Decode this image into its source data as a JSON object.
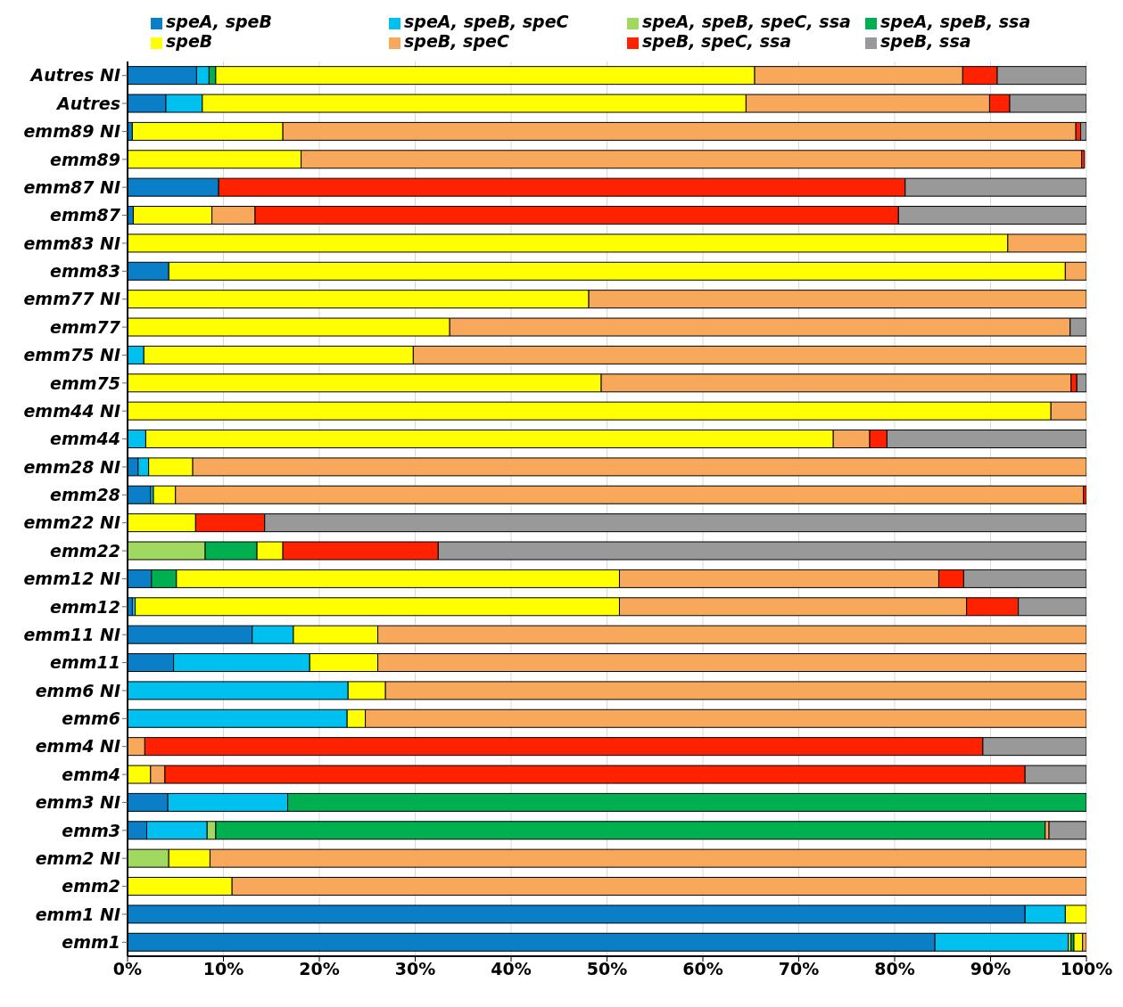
{
  "chart_data": {
    "type": "bar",
    "orientation": "horizontal",
    "stacked": true,
    "legend": "top",
    "grid": "x",
    "categories": [
      "Autres NI",
      "Autres",
      "emm89 NI",
      "emm89",
      "emm87 NI",
      "emm87",
      "emm83 NI",
      "emm83",
      "emm77 NI",
      "emm77",
      "emm75 NI",
      "emm75",
      "emm44 NI",
      "emm44",
      "emm28 NI",
      "emm28",
      "emm22 NI",
      "emm22",
      "emm12 NI",
      "emm12",
      "emm11 NI",
      "emm11",
      "emm6 NI",
      "emm6",
      "emm4 NI",
      "emm4",
      "emm3 NI",
      "emm3",
      "emm2 NI",
      "emm2",
      "emm1 NI",
      "emm1"
    ],
    "xlim": [
      0,
      100
    ],
    "xticks": [
      {
        "value": 0,
        "label": "0%"
      },
      {
        "value": 10,
        "label": "10%"
      },
      {
        "value": 20,
        "label": "20%"
      },
      {
        "value": 30,
        "label": "30%"
      },
      {
        "value": 40,
        "label": "40%"
      },
      {
        "value": 50,
        "label": "50%"
      },
      {
        "value": 60,
        "label": "60%"
      },
      {
        "value": 70,
        "label": "70%"
      },
      {
        "value": 80,
        "label": "80%"
      },
      {
        "value": 90,
        "label": "90%"
      },
      {
        "value": 100,
        "label": "100%"
      }
    ],
    "series": [
      {
        "name": "speA, speB",
        "color": "#0a7fc8",
        "values": [
          7.2,
          4.0,
          0.5,
          null,
          9.5,
          0.6,
          null,
          4.3,
          null,
          null,
          null,
          null,
          null,
          null,
          1.1,
          2.4,
          null,
          null,
          2.5,
          0.5,
          13.0,
          4.8,
          null,
          null,
          null,
          null,
          4.2,
          2.0,
          null,
          null,
          93.6,
          84.2
        ]
      },
      {
        "name": "speA, speB, speC",
        "color": "#00c0f0",
        "values": [
          1.3,
          3.8,
          null,
          null,
          null,
          null,
          null,
          null,
          null,
          null,
          1.7,
          null,
          null,
          1.9,
          1.1,
          0.3,
          null,
          null,
          null,
          0.3,
          4.3,
          14.2,
          23.0,
          22.9,
          null,
          null,
          12.5,
          6.3,
          null,
          null,
          4.2,
          13.9
        ]
      },
      {
        "name": "speA, speB, speC, ssa",
        "color": "#a0d860",
        "values": [
          null,
          null,
          null,
          null,
          null,
          null,
          null,
          null,
          null,
          null,
          null,
          null,
          null,
          null,
          null,
          null,
          null,
          8.1,
          null,
          null,
          null,
          null,
          null,
          null,
          null,
          null,
          null,
          0.9,
          4.3,
          null,
          null,
          0.3
        ]
      },
      {
        "name": "speA, speB, ssa",
        "color": "#00b050",
        "values": [
          0.7,
          null,
          null,
          null,
          null,
          null,
          null,
          null,
          null,
          null,
          null,
          null,
          null,
          null,
          null,
          null,
          null,
          5.4,
          2.6,
          null,
          null,
          null,
          null,
          null,
          null,
          null,
          83.3,
          86.5,
          null,
          null,
          null,
          0.3
        ]
      },
      {
        "name": "speB",
        "color": "#ffff00",
        "values": [
          56.2,
          56.7,
          15.7,
          18.1,
          null,
          8.2,
          91.8,
          93.5,
          48.1,
          33.6,
          28.1,
          49.4,
          96.3,
          71.7,
          4.6,
          2.3,
          7.1,
          2.7,
          46.2,
          50.5,
          8.8,
          7.1,
          3.9,
          1.9,
          null,
          2.4,
          null,
          null,
          4.3,
          10.9,
          2.2,
          0.9
        ]
      },
      {
        "name": "speB, speC",
        "color": "#f8a85a",
        "values": [
          21.7,
          25.4,
          82.7,
          81.4,
          null,
          4.5,
          8.2,
          2.2,
          51.9,
          64.7,
          70.2,
          49.0,
          3.7,
          3.8,
          93.2,
          94.7,
          null,
          null,
          33.3,
          36.2,
          73.9,
          73.9,
          73.1,
          75.2,
          1.8,
          1.5,
          null,
          0.4,
          91.4,
          89.1,
          null,
          0.4
        ]
      },
      {
        "name": "speB, speC, ssa",
        "color": "#ff2200",
        "values": [
          3.6,
          2.1,
          0.5,
          0.3,
          71.6,
          67.1,
          null,
          null,
          null,
          null,
          null,
          0.6,
          null,
          1.8,
          null,
          0.3,
          7.2,
          16.2,
          2.6,
          5.4,
          null,
          null,
          null,
          null,
          87.4,
          89.7,
          null,
          null,
          null,
          null,
          null,
          null
        ]
      },
      {
        "name": "speB, ssa",
        "color": "#999999",
        "values": [
          9.3,
          8.0,
          0.6,
          null,
          18.9,
          19.6,
          null,
          null,
          null,
          1.7,
          null,
          1.0,
          null,
          20.8,
          null,
          null,
          85.7,
          67.6,
          12.8,
          7.1,
          null,
          null,
          null,
          null,
          10.8,
          6.4,
          null,
          3.9,
          null,
          null,
          null,
          null
        ]
      }
    ]
  }
}
